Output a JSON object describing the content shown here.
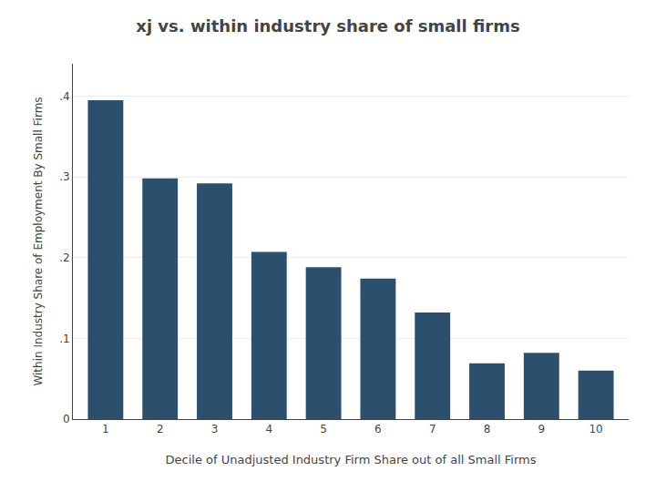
{
  "chart_data": {
    "type": "bar",
    "title": "xj vs. within industry share of small firms",
    "xlabel": "Decile of Unadjusted Industry Firm Share out of all Small Firms",
    "ylabel": "Within Industry Share of Employment By Small Firms",
    "categories": [
      1,
      2,
      3,
      4,
      5,
      6,
      7,
      8,
      9,
      10
    ],
    "values": [
      0.395,
      0.298,
      0.292,
      0.207,
      0.188,
      0.174,
      0.132,
      0.069,
      0.082,
      0.06
    ],
    "color": "#2d4f6e",
    "xlim": [
      0.4,
      10.6
    ],
    "xticks": [
      1,
      2,
      3,
      4,
      5,
      6,
      7,
      8,
      9,
      10
    ],
    "ylim": [
      0,
      0.44
    ],
    "yticks": [
      0,
      {
        "value": 0.1,
        "label": ".1"
      },
      {
        "value": 0.2,
        "label": ".2"
      },
      {
        "value": 0.3,
        "label": ".3"
      },
      {
        "value": 0.4,
        "label": ".4"
      }
    ],
    "grid": true
  }
}
